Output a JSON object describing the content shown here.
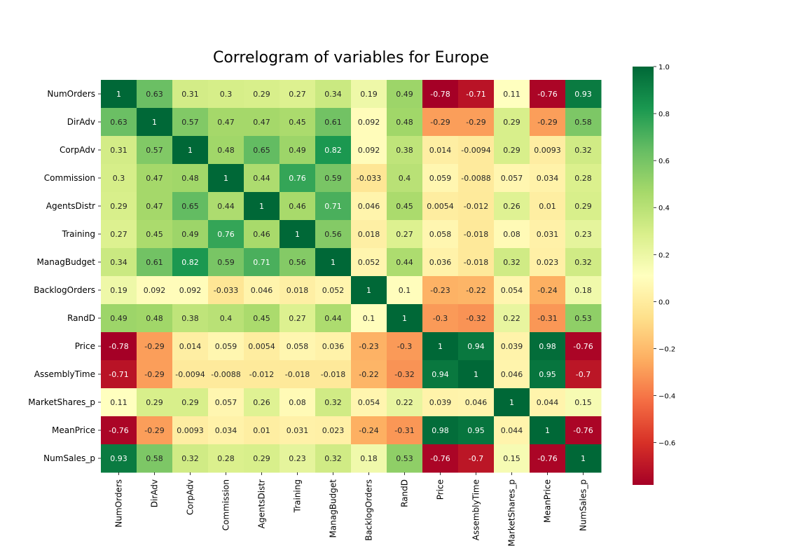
{
  "chart_data": {
    "type": "heatmap",
    "title": "Correlogram of variables for Europe",
    "labels": [
      "NumOrders",
      "DirAdv",
      "CorpAdv",
      "Commission",
      "AgentsDistr",
      "Training",
      "ManagBudget",
      "BacklogOrders",
      "RandD",
      "Price",
      "AssemblyTime",
      "MarketShares_p",
      "MeanPrice",
      "NumSales_p"
    ],
    "matrix": [
      [
        "1",
        "0.63",
        "0.31",
        "0.3",
        "0.29",
        "0.27",
        "0.34",
        "0.19",
        "0.49",
        "-0.78",
        "-0.71",
        "0.11",
        "-0.76",
        "0.93"
      ],
      [
        "0.63",
        "1",
        "0.57",
        "0.47",
        "0.47",
        "0.45",
        "0.61",
        "0.092",
        "0.48",
        "-0.29",
        "-0.29",
        "0.29",
        "-0.29",
        "0.58"
      ],
      [
        "0.31",
        "0.57",
        "1",
        "0.48",
        "0.65",
        "0.49",
        "0.82",
        "0.092",
        "0.38",
        "0.014",
        "-0.0094",
        "0.29",
        "0.0093",
        "0.32"
      ],
      [
        "0.3",
        "0.47",
        "0.48",
        "1",
        "0.44",
        "0.76",
        "0.59",
        "-0.033",
        "0.4",
        "0.059",
        "-0.0088",
        "0.057",
        "0.034",
        "0.28"
      ],
      [
        "0.29",
        "0.47",
        "0.65",
        "0.44",
        "1",
        "0.46",
        "0.71",
        "0.046",
        "0.45",
        "0.0054",
        "-0.012",
        "0.26",
        "0.01",
        "0.29"
      ],
      [
        "0.27",
        "0.45",
        "0.49",
        "0.76",
        "0.46",
        "1",
        "0.56",
        "0.018",
        "0.27",
        "0.058",
        "-0.018",
        "0.08",
        "0.031",
        "0.23"
      ],
      [
        "0.34",
        "0.61",
        "0.82",
        "0.59",
        "0.71",
        "0.56",
        "1",
        "0.052",
        "0.44",
        "0.036",
        "-0.018",
        "0.32",
        "0.023",
        "0.32"
      ],
      [
        "0.19",
        "0.092",
        "0.092",
        "-0.033",
        "0.046",
        "0.018",
        "0.052",
        "1",
        "0.1",
        "-0.23",
        "-0.22",
        "0.054",
        "-0.24",
        "0.18"
      ],
      [
        "0.49",
        "0.48",
        "0.38",
        "0.4",
        "0.45",
        "0.27",
        "0.44",
        "0.1",
        "1",
        "-0.3",
        "-0.32",
        "0.22",
        "-0.31",
        "0.53"
      ],
      [
        "-0.78",
        "-0.29",
        "0.014",
        "0.059",
        "0.0054",
        "0.058",
        "0.036",
        "-0.23",
        "-0.3",
        "1",
        "0.94",
        "0.039",
        "0.98",
        "-0.76"
      ],
      [
        "-0.71",
        "-0.29",
        "-0.0094",
        "-0.0088",
        "-0.012",
        "-0.018",
        "-0.018",
        "-0.22",
        "-0.32",
        "0.94",
        "1",
        "0.046",
        "0.95",
        "-0.7"
      ],
      [
        "0.11",
        "0.29",
        "0.29",
        "0.057",
        "0.26",
        "0.08",
        "0.32",
        "0.054",
        "0.22",
        "0.039",
        "0.046",
        "1",
        "0.044",
        "0.15"
      ],
      [
        "-0.76",
        "-0.29",
        "0.0093",
        "0.034",
        "0.01",
        "0.031",
        "0.023",
        "-0.24",
        "-0.31",
        "0.98",
        "0.95",
        "0.044",
        "1",
        "-0.76"
      ],
      [
        "0.93",
        "0.58",
        "0.32",
        "0.28",
        "0.29",
        "0.23",
        "0.32",
        "0.18",
        "0.53",
        "-0.76",
        "-0.7",
        "0.15",
        "-0.76",
        "1"
      ]
    ],
    "colormap": "RdYlGn",
    "color_range": [
      -0.78,
      1.0
    ],
    "colorbar_ticks": [
      "1.0",
      "0.8",
      "0.6",
      "0.4",
      "0.2",
      "0.0",
      "−0.2",
      "−0.4",
      "−0.6"
    ],
    "annotations": true,
    "grid": false
  }
}
